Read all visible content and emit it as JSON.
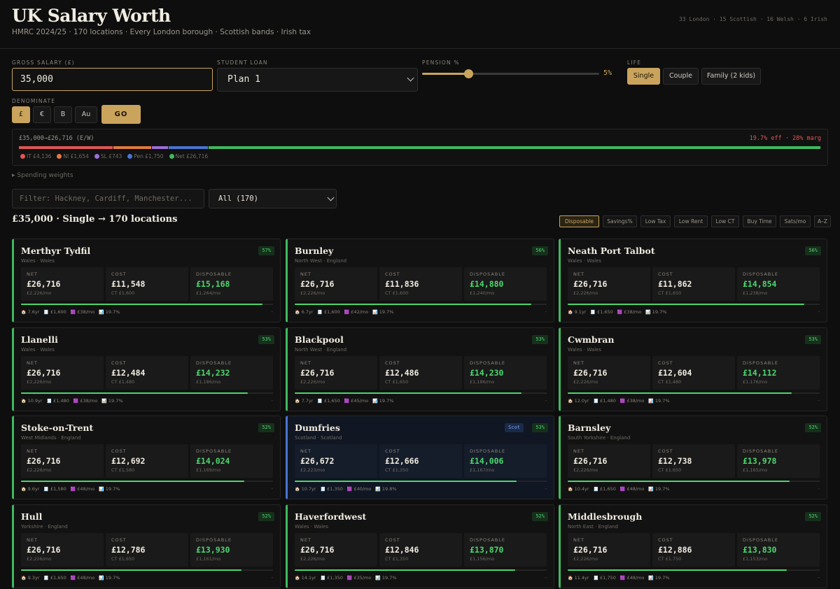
{
  "header": {
    "title": "UK Salary Worth",
    "subtitle": "HMRC 2024/25 · 170 locations · Every London borough · Scottish bands · Irish tax",
    "counts": "33 London · 15 Scottish · 16 Welsh · 6 Irish"
  },
  "controls": {
    "gross_label": "GROSS SALARY (£)",
    "gross_value": "35,000",
    "loan_label": "STUDENT LOAN",
    "loan_value": "Plan 1",
    "pension_label": "PENSION %",
    "pension_value": "5%",
    "pension_fraction": 0.05,
    "life_label": "LIFE",
    "life_options": [
      "Single",
      "Couple",
      "Family (2 kids)"
    ],
    "life_selected": 0,
    "denom_label": "DENOMINATE",
    "denom_options": [
      "£",
      "€",
      "B",
      "Au"
    ],
    "denom_selected": 0,
    "go_label": "GO"
  },
  "breakdown": {
    "summary": "£35,000→£26,716 (E/W)",
    "rates": "19.7% eff · 28% marg",
    "legend": [
      {
        "label": "IT £4,136",
        "color": "#e05555"
      },
      {
        "label": "NI £1,654",
        "color": "#e07a3e"
      },
      {
        "label": "SL £743",
        "color": "#9b6fd6"
      },
      {
        "label": "Pen £1,750",
        "color": "#4a74d0"
      },
      {
        "label": "Net £26,716",
        "color": "#3fb860"
      }
    ],
    "spending_weights": "Spending weights"
  },
  "filter": {
    "placeholder": "Filter: Hackney, Cardiff, Manchester...",
    "select_value": "All (170)"
  },
  "results": {
    "heading": "£35,000 · Single → 170 locations",
    "sort_options": [
      "Disposable",
      "Savings%",
      "Low Tax",
      "Low Rent",
      "Low CT",
      "Buy Time",
      "Sats/mo",
      "A–Z"
    ],
    "sort_selected": 0
  },
  "cards": [
    {
      "name": "Merthyr Tydfil",
      "region": "Wales · Wales",
      "pct": "57%",
      "tag": "",
      "net": "£26,716",
      "net_mo": "£2,226/mo",
      "cost": "£11,548",
      "ct": "CT £1,600",
      "disp": "£15,168",
      "disp_mo": "£1,264/mo",
      "fill": 0.957,
      "s1": "7.6yr",
      "s2": "£1,600",
      "s3": "£38/mo",
      "s4": "19.7%"
    },
    {
      "name": "Burnley",
      "region": "North West · England",
      "pct": "56%",
      "tag": "",
      "net": "£26,716",
      "net_mo": "£2,226/mo",
      "cost": "£11,836",
      "ct": "CT £1,600",
      "disp": "£14,880",
      "disp_mo": "£1,240/mo",
      "fill": 0.94,
      "s1": "6.7yr",
      "s2": "£1,600",
      "s3": "£42/mo",
      "s4": "19.7%"
    },
    {
      "name": "Neath Port Talbot",
      "region": "Wales · Wales",
      "pct": "56%",
      "tag": "",
      "net": "£26,716",
      "net_mo": "£2,226/mo",
      "cost": "£11,862",
      "ct": "CT £1,650",
      "disp": "£14,854",
      "disp_mo": "£1,238/mo",
      "fill": 0.94,
      "s1": "9.1yr",
      "s2": "£1,650",
      "s3": "£38/mo",
      "s4": "19.7%"
    },
    {
      "name": "Llanelli",
      "region": "Wales · Wales",
      "pct": "53%",
      "tag": "",
      "net": "£26,716",
      "net_mo": "£2,226/mo",
      "cost": "£12,484",
      "ct": "CT £1,480",
      "disp": "£14,232",
      "disp_mo": "£1,186/mo",
      "fill": 0.9,
      "s1": "10.9yr",
      "s2": "£1,480",
      "s3": "£38/mo",
      "s4": "19.7%"
    },
    {
      "name": "Blackpool",
      "region": "North West · England",
      "pct": "53%",
      "tag": "",
      "net": "£26,716",
      "net_mo": "£2,226/mo",
      "cost": "£12,486",
      "ct": "CT £1,650",
      "disp": "£14,230",
      "disp_mo": "£1,186/mo",
      "fill": 0.9,
      "s1": "7.7yr",
      "s2": "£1,650",
      "s3": "£45/mo",
      "s4": "19.7%"
    },
    {
      "name": "Cwmbran",
      "region": "Wales · Wales",
      "pct": "53%",
      "tag": "",
      "net": "£26,716",
      "net_mo": "£2,226/mo",
      "cost": "£12,604",
      "ct": "CT £1,480",
      "disp": "£14,112",
      "disp_mo": "£1,176/mo",
      "fill": 0.89,
      "s1": "12.0yr",
      "s2": "£1,480",
      "s3": "£38/mo",
      "s4": "19.7%"
    },
    {
      "name": "Stoke-on-Trent",
      "region": "West Midlands · England",
      "pct": "52%",
      "tag": "",
      "net": "£26,716",
      "net_mo": "£2,226/mo",
      "cost": "£12,692",
      "ct": "CT £1,580",
      "disp": "£14,024",
      "disp_mo": "£1,169/mo",
      "fill": 0.885,
      "s1": "9.6yr",
      "s2": "£1,580",
      "s3": "£48/mo",
      "s4": "19.7%"
    },
    {
      "name": "Dumfries",
      "region": "Scotland · Scotland",
      "pct": "53%",
      "tag": "Scot",
      "net": "£26,672",
      "net_mo": "£2,223/mo",
      "cost": "£12,666",
      "ct": "CT £1,350",
      "disp": "£14,006",
      "disp_mo": "£1,167/mo",
      "fill": 0.88,
      "s1": "10.7yr",
      "s2": "£1,350",
      "s3": "£40/mo",
      "s4": "19.8%"
    },
    {
      "name": "Barnsley",
      "region": "South Yorkshire · England",
      "pct": "52%",
      "tag": "",
      "net": "£26,716",
      "net_mo": "£2,226/mo",
      "cost": "£12,738",
      "ct": "CT £1,650",
      "disp": "£13,978",
      "disp_mo": "£1,165/mo",
      "fill": 0.88,
      "s1": "10.4yr",
      "s2": "£1,650",
      "s3": "£48/mo",
      "s4": "19.7%"
    },
    {
      "name": "Hull",
      "region": "Yorkshire · England",
      "pct": "52%",
      "tag": "",
      "net": "£26,716",
      "net_mo": "£2,226/mo",
      "cost": "£12,786",
      "ct": "CT £1,650",
      "disp": "£13,930",
      "disp_mo": "£1,161/mo",
      "fill": 0.875,
      "s1": "9.3yr",
      "s2": "£1,650",
      "s3": "£48/mo",
      "s4": "19.7%"
    },
    {
      "name": "Haverfordwest",
      "region": "Wales · Wales",
      "pct": "52%",
      "tag": "",
      "net": "£26,716",
      "net_mo": "£2,226/mo",
      "cost": "£12,846",
      "ct": "CT £1,350",
      "disp": "£13,870",
      "disp_mo": "£1,156/mo",
      "fill": 0.875,
      "s1": "14.1yr",
      "s2": "£1,350",
      "s3": "£35/mo",
      "s4": "19.7%"
    },
    {
      "name": "Middlesbrough",
      "region": "North East · England",
      "pct": "52%",
      "tag": "",
      "net": "£26,716",
      "net_mo": "£2,226/mo",
      "cost": "£12,886",
      "ct": "CT £1,750",
      "disp": "£13,830",
      "disp_mo": "£1,153/mo",
      "fill": 0.87,
      "s1": "11.4yr",
      "s2": "£1,750",
      "s3": "£48/mo",
      "s4": "19.7%"
    }
  ]
}
